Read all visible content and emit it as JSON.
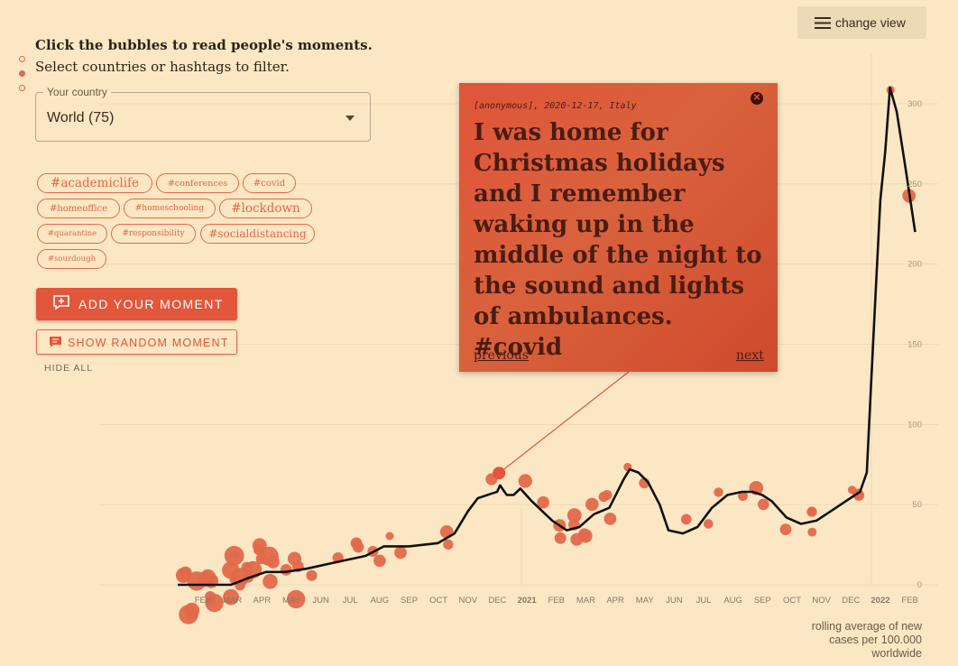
{
  "intro": {
    "heading": "Click the bubbles to read people's moments.",
    "subheading": "Select countries or hashtags to filter."
  },
  "country_select": {
    "legend": "Your country",
    "value": "World (75)"
  },
  "hashtags": [
    "#academiclife",
    "#conferences",
    "#covid",
    "#homeoffice",
    "#homeschooling",
    "#lockdown",
    "#quarantine",
    "#responsibility",
    "#socialdistancing",
    "#sourdough"
  ],
  "buttons": {
    "add_moment": "ADD YOUR MOMENT",
    "random_moment": "SHOW RANDOM MOMENT",
    "hide_all": "HIDE ALL",
    "change_view": "change view"
  },
  "moment_card": {
    "meta": "[anonymous], 2020-12-17, Italy",
    "text": "I was home for Christmas holidays and I remember waking up in the middle of the night to the sound and lights of ambulances. #covid",
    "previous": "previous",
    "next": "next"
  },
  "caption": [
    "rolling average of new",
    "cases per 100.000",
    "worldwide"
  ],
  "colors": {
    "accent": "#e2563b",
    "bubble": "#e2694b",
    "line": "#111111",
    "background": "#fbe7c3"
  },
  "chart_data": {
    "type": "line",
    "x_tick_labels": [
      "FEB",
      "MAR",
      "APR",
      "MAY",
      "JUN",
      "JUL",
      "AUG",
      "SEP",
      "OCT",
      "NOV",
      "DEC",
      "2021",
      "FEB",
      "MAR",
      "APR",
      "MAY",
      "JUN",
      "JUL",
      "AUG",
      "SEP",
      "OCT",
      "NOV",
      "DEC",
      "2022",
      "FEB"
    ],
    "y_tick_labels": [
      "0",
      "50",
      "100",
      "150",
      "200",
      "250",
      "300"
    ],
    "ylim": [
      0,
      300
    ],
    "grid": true,
    "y_axis_side": "right",
    "series": [
      {
        "x": [
          "2020-01-20",
          "2020-03-15",
          "2020-04-01",
          "2020-04-20",
          "2020-05-10",
          "2020-06-01",
          "2020-07-01",
          "2020-08-01",
          "2020-08-20",
          "2020-09-15",
          "2020-10-15",
          "2020-11-01",
          "2020-11-15",
          "2020-11-25",
          "2020-12-10",
          "2020-12-15",
          "2020-12-18",
          "2020-12-25",
          "2021-01-01",
          "2021-01-08",
          "2021-01-20",
          "2021-02-10",
          "2021-02-25",
          "2021-03-10",
          "2021-03-25",
          "2021-04-10",
          "2021-04-25",
          "2021-05-01",
          "2021-05-10",
          "2021-05-20",
          "2021-06-01",
          "2021-06-10",
          "2021-06-25",
          "2021-07-10",
          "2021-07-25",
          "2021-08-10",
          "2021-08-25",
          "2021-09-05",
          "2021-09-15",
          "2021-09-25",
          "2021-10-10",
          "2021-10-25",
          "2021-11-10",
          "2021-11-25",
          "2021-12-10",
          "2021-12-20",
          "2021-12-25",
          "2022-01-01",
          "2022-01-05",
          "2022-01-10",
          "2022-01-15",
          "2022-01-20",
          "2022-01-25",
          "2022-02-01",
          "2022-02-10",
          "2022-02-20"
        ],
        "y": [
          0,
          0,
          4,
          8,
          8,
          10,
          14,
          18,
          24,
          24,
          26,
          32,
          46,
          54,
          57,
          58,
          62,
          56,
          56,
          60,
          52,
          40,
          34,
          36,
          44,
          48,
          66,
          72,
          70,
          64,
          50,
          34,
          32,
          36,
          48,
          56,
          58,
          58,
          56,
          52,
          42,
          38,
          40,
          46,
          52,
          56,
          58,
          70,
          120,
          180,
          240,
          270,
          310,
          295,
          260,
          220
        ]
      }
    ],
    "moment_bubbles_count": 75,
    "highlighted_moment_date": "2020-12-17"
  }
}
